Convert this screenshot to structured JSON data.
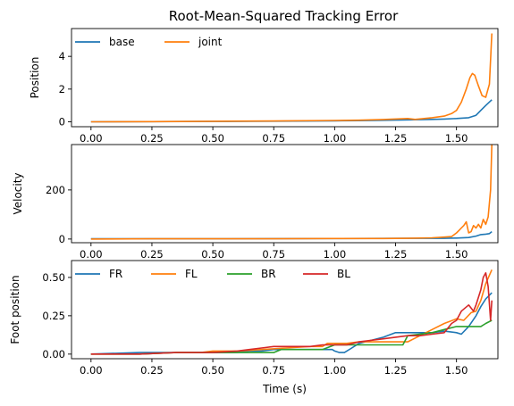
{
  "figure_title": "Root-Mean-Squared Tracking Error",
  "chart_data": [
    {
      "type": "line",
      "ylabel": "Position",
      "xlim": [
        -0.08,
        1.67
      ],
      "ylim": [
        -0.3,
        5.7
      ],
      "x_ticks": [
        0.0,
        0.25,
        0.5,
        0.75,
        1.0,
        1.25,
        1.5
      ],
      "x_tick_labels": [
        "0.00",
        "0.25",
        "0.50",
        "0.75",
        "1.00",
        "1.25",
        "1.50"
      ],
      "y_ticks": [
        0,
        2,
        4
      ],
      "y_tick_labels": [
        "0",
        "2",
        "4"
      ],
      "legend": {
        "placement": "top-left",
        "columns": 2
      },
      "grid": false,
      "series": [
        {
          "name": "base",
          "color": "#1f77b4",
          "x": [
            0.0,
            0.25,
            0.5,
            0.75,
            1.0,
            1.1,
            1.2,
            1.3,
            1.35,
            1.4,
            1.45,
            1.5,
            1.55,
            1.58,
            1.6,
            1.62,
            1.645
          ],
          "y": [
            0.0,
            0.01,
            0.02,
            0.04,
            0.06,
            0.07,
            0.09,
            0.12,
            0.13,
            0.15,
            0.17,
            0.2,
            0.25,
            0.4,
            0.7,
            1.0,
            1.35
          ]
        },
        {
          "name": "joint",
          "color": "#ff7f0e",
          "x": [
            0.0,
            0.25,
            0.5,
            0.75,
            1.0,
            1.1,
            1.2,
            1.3,
            1.33,
            1.4,
            1.45,
            1.48,
            1.5,
            1.52,
            1.54,
            1.555,
            1.565,
            1.575,
            1.59,
            1.605,
            1.62,
            1.635,
            1.645
          ],
          "y": [
            0.0,
            0.01,
            0.03,
            0.05,
            0.08,
            0.1,
            0.14,
            0.2,
            0.15,
            0.25,
            0.35,
            0.5,
            0.7,
            1.2,
            2.0,
            2.7,
            2.95,
            2.85,
            2.2,
            1.6,
            1.5,
            2.3,
            5.4
          ]
        }
      ]
    },
    {
      "type": "line",
      "ylabel": "Velocity",
      "xlim": [
        -0.08,
        1.67
      ],
      "ylim": [
        -15,
        385
      ],
      "x_ticks": [
        0.0,
        0.25,
        0.5,
        0.75,
        1.0,
        1.25,
        1.5
      ],
      "x_tick_labels": [
        "0.00",
        "0.25",
        "0.50",
        "0.75",
        "1.00",
        "1.25",
        "1.50"
      ],
      "y_ticks": [
        0,
        200
      ],
      "y_tick_labels": [
        "0",
        "200"
      ],
      "legend": null,
      "grid": false,
      "series": [
        {
          "color": "#1f77b4",
          "x": [
            0.0,
            0.5,
            1.0,
            1.3,
            1.45,
            1.5,
            1.55,
            1.58,
            1.6,
            1.62,
            1.635,
            1.645
          ],
          "y": [
            1,
            1,
            2,
            3,
            3,
            4,
            6,
            12,
            18,
            20,
            22,
            30
          ]
        },
        {
          "color": "#ff7f0e",
          "x": [
            0.0,
            0.25,
            0.5,
            0.75,
            1.0,
            1.1,
            1.2,
            1.3,
            1.4,
            1.45,
            1.48,
            1.5,
            1.51,
            1.52,
            1.53,
            1.54,
            1.55,
            1.56,
            1.57,
            1.58,
            1.59,
            1.6,
            1.61,
            1.62,
            1.63,
            1.64,
            1.645
          ],
          "y": [
            0,
            1,
            1,
            1,
            2,
            2,
            2,
            3,
            5,
            8,
            10,
            25,
            35,
            45,
            55,
            70,
            25,
            30,
            55,
            45,
            60,
            45,
            80,
            60,
            90,
            200,
            385
          ]
        }
      ]
    },
    {
      "type": "line",
      "ylabel": "Foot position",
      "xlabel": "Time (s)",
      "xlim": [
        -0.08,
        1.67
      ],
      "ylim": [
        -0.03,
        0.61
      ],
      "x_ticks": [
        0.0,
        0.25,
        0.5,
        0.75,
        1.0,
        1.25,
        1.5
      ],
      "x_tick_labels": [
        "0.00",
        "0.25",
        "0.50",
        "0.75",
        "1.00",
        "1.25",
        "1.50"
      ],
      "y_ticks": [
        0.0,
        0.25,
        0.5
      ],
      "y_tick_labels": [
        "0.00",
        "0.25",
        "0.50"
      ],
      "legend": {
        "placement": "top-left",
        "columns": 4
      },
      "grid": false,
      "series": [
        {
          "name": "FR",
          "color": "#1f77b4",
          "x": [
            0.0,
            0.2,
            0.35,
            0.4,
            0.6,
            0.65,
            0.7,
            0.75,
            0.8,
            0.85,
            0.9,
            0.95,
            0.99,
            1.0,
            1.02,
            1.04,
            1.07,
            1.1,
            1.15,
            1.2,
            1.25,
            1.3,
            1.35,
            1.4,
            1.45,
            1.5,
            1.52,
            1.55,
            1.58,
            1.6,
            1.62,
            1.645
          ],
          "y": [
            0.0,
            0.01,
            0.01,
            0.01,
            0.01,
            0.02,
            0.02,
            0.03,
            0.03,
            0.03,
            0.03,
            0.03,
            0.03,
            0.02,
            0.01,
            0.01,
            0.04,
            0.07,
            0.09,
            0.11,
            0.14,
            0.14,
            0.14,
            0.14,
            0.15,
            0.14,
            0.13,
            0.18,
            0.25,
            0.31,
            0.36,
            0.4
          ]
        },
        {
          "name": "FL",
          "color": "#ff7f0e",
          "x": [
            0.0,
            0.2,
            0.35,
            0.45,
            0.5,
            0.6,
            0.7,
            0.8,
            0.9,
            0.95,
            0.97,
            1.0,
            1.05,
            1.1,
            1.2,
            1.25,
            1.3,
            1.35,
            1.4,
            1.45,
            1.5,
            1.53,
            1.56,
            1.58,
            1.6,
            1.62,
            1.645
          ],
          "y": [
            0.0,
            0.0,
            0.01,
            0.01,
            0.02,
            0.02,
            0.03,
            0.04,
            0.05,
            0.05,
            0.07,
            0.07,
            0.07,
            0.08,
            0.08,
            0.08,
            0.08,
            0.12,
            0.16,
            0.2,
            0.23,
            0.22,
            0.27,
            0.28,
            0.35,
            0.46,
            0.55
          ]
        },
        {
          "name": "BR",
          "color": "#2ca02c",
          "x": [
            0.0,
            0.2,
            0.35,
            0.4,
            0.5,
            0.6,
            0.7,
            0.75,
            0.78,
            0.8,
            0.9,
            0.95,
            1.0,
            1.05,
            1.1,
            1.2,
            1.25,
            1.28,
            1.3,
            1.4,
            1.45,
            1.5,
            1.55,
            1.6,
            1.62,
            1.645
          ],
          "y": [
            0.0,
            0.0,
            0.01,
            0.01,
            0.01,
            0.01,
            0.01,
            0.01,
            0.03,
            0.03,
            0.03,
            0.03,
            0.06,
            0.06,
            0.06,
            0.06,
            0.06,
            0.06,
            0.12,
            0.14,
            0.16,
            0.18,
            0.18,
            0.18,
            0.2,
            0.22
          ]
        },
        {
          "name": "BL",
          "color": "#d62728",
          "x": [
            0.0,
            0.2,
            0.35,
            0.4,
            0.5,
            0.6,
            0.65,
            0.7,
            0.75,
            0.8,
            0.9,
            0.95,
            1.0,
            1.05,
            1.1,
            1.2,
            1.3,
            1.35,
            1.4,
            1.45,
            1.48,
            1.5,
            1.52,
            1.55,
            1.57,
            1.58,
            1.6,
            1.61,
            1.62,
            1.63,
            1.64,
            1.645
          ],
          "y": [
            0.0,
            0.0,
            0.01,
            0.01,
            0.01,
            0.02,
            0.03,
            0.04,
            0.05,
            0.05,
            0.05,
            0.06,
            0.06,
            0.06,
            0.08,
            0.1,
            0.12,
            0.12,
            0.13,
            0.14,
            0.2,
            0.22,
            0.28,
            0.32,
            0.28,
            0.32,
            0.42,
            0.5,
            0.53,
            0.44,
            0.22,
            0.35
          ]
        }
      ]
    }
  ]
}
